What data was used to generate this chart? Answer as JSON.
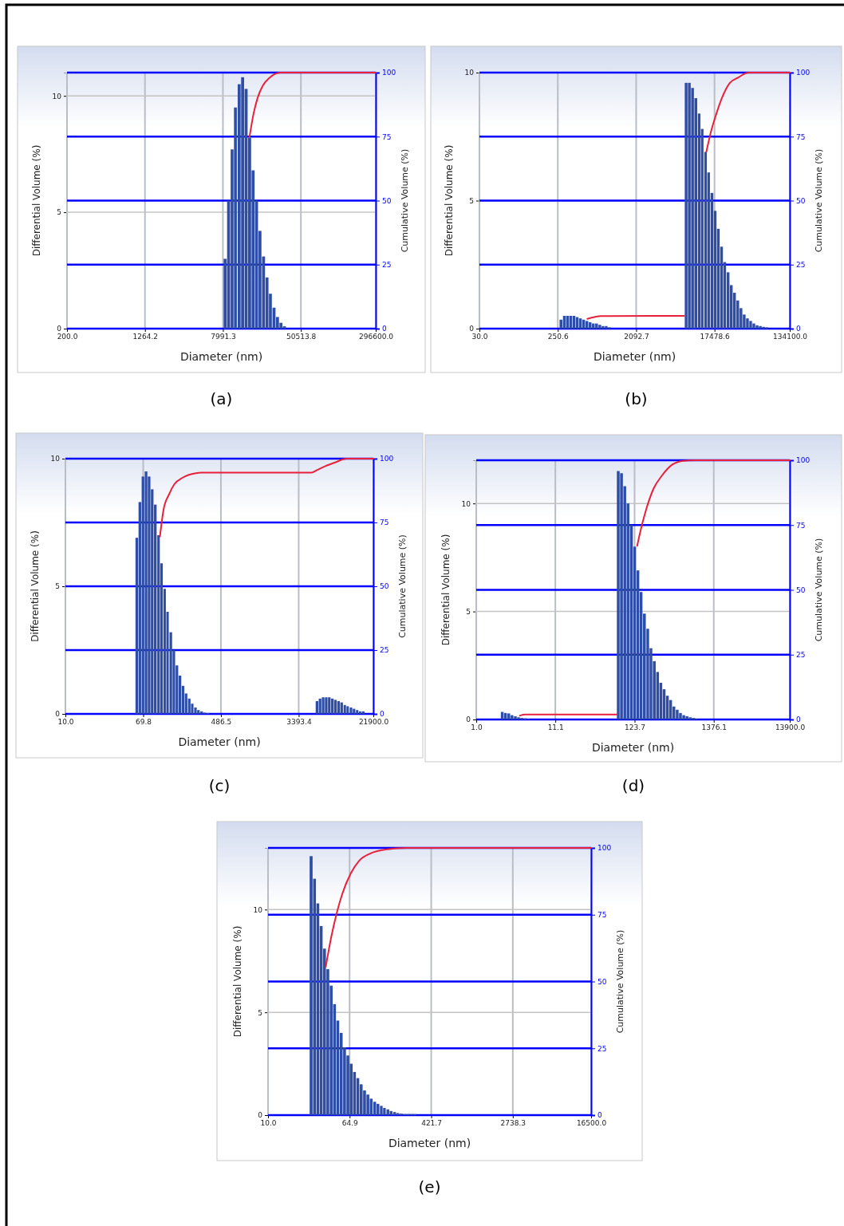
{
  "chart_data": [
    {
      "type": "bar",
      "title": "(a)",
      "xlabel": "Diameter (nm)",
      "ylabel": "Differential Volume (%)",
      "y2label": "Cumulative Volume (%)",
      "log": "x",
      "xlim": [
        200,
        296600
      ],
      "xticks": [
        {
          "value": 200,
          "label": "200.0"
        },
        {
          "value": 1264.2,
          "label": "1264.2"
        },
        {
          "value": 7991.3,
          "label": "7991.3"
        },
        {
          "value": 50513.8,
          "label": "50513.8"
        },
        {
          "value": 296600,
          "label": "296600.0"
        }
      ],
      "ylim": [
        0,
        11
      ],
      "yticks": [
        0,
        5,
        10
      ],
      "y2lim": [
        0,
        100
      ],
      "y2ticks": [
        0,
        25,
        50,
        75,
        100
      ],
      "grid": true,
      "series": [
        {
          "color": "#2e4da6",
          "x": [
            8460,
            9190,
            9980,
            10800,
            11800,
            12800,
            13900,
            15100,
            16400,
            17800,
            19300,
            21000,
            22800,
            24700,
            26900,
            29200,
            31700,
            34400
          ],
          "values": [
            3.0,
            5.5,
            7.7,
            9.5,
            10.5,
            10.8,
            10.3,
            8.2,
            6.8,
            5.5,
            4.2,
            3.1,
            2.2,
            1.5,
            0.9,
            0.5,
            0.25,
            0.1
          ]
        },
        {
          "type": "line",
          "axis": "y2",
          "color": "#e8203c",
          "x": [
            15000,
            16500,
            18100,
            20600,
            24100,
            31100,
            296600
          ],
          "values": [
            75,
            84,
            90,
            95,
            98,
            100,
            100
          ]
        }
      ]
    },
    {
      "type": "bar",
      "title": "(b)",
      "xlabel": "Diameter (nm)",
      "ylabel": "Differential Volume (%)",
      "y2label": "Cumulative Volume (%)",
      "log": "x",
      "xlim": [
        30,
        134100
      ],
      "xticks": [
        {
          "value": 30,
          "label": "30.0"
        },
        {
          "value": 250.6,
          "label": "250.6"
        },
        {
          "value": 2092.7,
          "label": "2092.7"
        },
        {
          "value": 17478.6,
          "label": "17478.6"
        },
        {
          "value": 134100,
          "label": "134100.0"
        }
      ],
      "ylim": [
        0,
        10
      ],
      "yticks": [
        0,
        5,
        10
      ],
      "y2lim": [
        0,
        100
      ],
      "y2ticks": [
        0,
        25,
        50,
        75,
        100
      ],
      "grid": true,
      "series": [
        {
          "color": "#2e4da6",
          "x": [
            275,
            301,
            328,
            358,
            391,
            426,
            465,
            508,
            554,
            605,
            660,
            720,
            786,
            857,
            936,
            1020,
            8150,
            8890,
            9700,
            10600,
            11600,
            12600,
            13800,
            15000,
            16400,
            17900,
            19500,
            21300,
            23200,
            25400,
            27700,
            30200,
            33000,
            36000,
            39300,
            42900,
            46800,
            51000,
            55700,
            60800,
            66300,
            72400
          ],
          "values": [
            0.35,
            0.5,
            0.5,
            0.5,
            0.5,
            0.45,
            0.4,
            0.35,
            0.3,
            0.25,
            0.2,
            0.2,
            0.15,
            0.1,
            0.1,
            0.05,
            9.6,
            9.6,
            9.4,
            9.0,
            8.4,
            7.8,
            6.9,
            6.1,
            5.3,
            4.6,
            3.9,
            3.2,
            2.6,
            2.2,
            1.7,
            1.4,
            1.1,
            0.8,
            0.55,
            0.4,
            0.3,
            0.2,
            0.13,
            0.1,
            0.07,
            0.05
          ]
        },
        {
          "type": "line",
          "axis": "y2",
          "color": "#e8203c",
          "x": [
            558,
            804,
            7690,
            10300,
            14000,
            15900,
            18400,
            21300,
            26500,
            33000,
            44100,
            54900,
            134100
          ],
          "values": [
            3.8,
            4.9,
            5.0,
            null,
            69,
            77,
            84,
            90,
            96,
            98,
            100,
            100,
            100
          ]
        }
      ]
    },
    {
      "type": "bar",
      "title": "(c)",
      "xlabel": "Diameter (nm)",
      "ylabel": "Differential Volume (%)",
      "y2label": "Cumulative Volume (%)",
      "log": "x",
      "xlim": [
        10,
        21900
      ],
      "xticks": [
        {
          "value": 10,
          "label": "10.0"
        },
        {
          "value": 69.8,
          "label": "69.8"
        },
        {
          "value": 486.5,
          "label": "486.5"
        },
        {
          "value": 3393.4,
          "label": "3393.4"
        },
        {
          "value": 21900,
          "label": "21900.0"
        }
      ],
      "ylim": [
        0,
        10
      ],
      "yticks": [
        0,
        5,
        10
      ],
      "y2lim": [
        0,
        100
      ],
      "y2ticks": [
        0,
        25,
        50,
        75,
        100
      ],
      "grid": true,
      "series": [
        {
          "color": "#2e4da6",
          "x": [
            59.8,
            64.6,
            69.8,
            75.4,
            81.4,
            87.9,
            95.0,
            103,
            111,
            120,
            129,
            140,
            151,
            163,
            176,
            190,
            205,
            222,
            239,
            259,
            279,
            302,
            326,
            352,
            5390,
            5820,
            6290,
            6790,
            7330,
            7920,
            8550,
            9240,
            9980,
            10800,
            11600,
            12600,
            13600,
            14700,
            15800,
            17100
          ],
          "values": [
            6.9,
            8.3,
            9.3,
            9.5,
            9.3,
            8.8,
            8.2,
            7.0,
            5.9,
            4.9,
            4.0,
            3.2,
            2.5,
            1.9,
            1.5,
            1.1,
            0.8,
            0.6,
            0.4,
            0.25,
            0.15,
            0.1,
            0.05,
            0.03,
            0.5,
            0.6,
            0.65,
            0.65,
            0.65,
            0.6,
            0.55,
            0.5,
            0.45,
            0.35,
            0.3,
            0.25,
            0.2,
            0.15,
            0.1,
            0.1
          ]
        },
        {
          "type": "line",
          "axis": "y2",
          "color": "#e8203c",
          "x": [
            106,
            116,
            133,
            152,
            186,
            260,
            297,
            4680,
            5350,
            6550,
            8560,
            11180,
            21900
          ],
          "values": [
            69.5,
            80,
            86,
            90,
            92.5,
            94.3,
            94.5,
            94.5,
            95.5,
            97,
            98.6,
            100,
            100
          ]
        }
      ]
    },
    {
      "type": "bar",
      "title": "(d)",
      "xlabel": "Diameter (nm)",
      "ylabel": "Differential Volume (%)",
      "y2label": "Cumulative Volume (%)",
      "log": "x",
      "xlim": [
        1,
        13900
      ],
      "xticks": [
        {
          "value": 1,
          "label": "1.0"
        },
        {
          "value": 11.1,
          "label": "11.1"
        },
        {
          "value": 123.7,
          "label": "123.7"
        },
        {
          "value": 1376.1,
          "label": "1376.1"
        },
        {
          "value": 13900,
          "label": "13900.0"
        }
      ],
      "ylim": [
        0,
        12
      ],
      "yticks": [
        0,
        5,
        10
      ],
      "y2lim": [
        0,
        100
      ],
      "y2ticks": [
        0,
        25,
        50,
        75,
        100
      ],
      "grid": true,
      "series": [
        {
          "color": "#2e4da6",
          "x": [
            2.22,
            2.45,
            2.71,
            2.99,
            3.31,
            3.65,
            4.04,
            4.46,
            4.92,
            75.8,
            83.7,
            92.5,
            102,
            113,
            125,
            138,
            152,
            168,
            186,
            205,
            227,
            251,
            277,
            306,
            338,
            373,
            412,
            456,
            503,
            556,
            614,
            679,
            750,
            829
          ],
          "values": [
            0.35,
            0.3,
            0.28,
            0.2,
            0.15,
            0.1,
            0.07,
            0.05,
            0.03,
            11.5,
            11.4,
            10.8,
            10.0,
            9.0,
            8.0,
            6.9,
            5.9,
            4.9,
            4.2,
            3.3,
            2.7,
            2.2,
            1.7,
            1.4,
            1.1,
            0.9,
            0.6,
            0.45,
            0.3,
            0.2,
            0.15,
            0.1,
            0.07,
            0.04
          ]
        },
        {
          "type": "line",
          "axis": "y2",
          "color": "#e8203c",
          "x": [
            3.77,
            4.46,
            71.9,
            104,
            134,
            146,
            172,
            220,
            283,
            394,
            550,
            766,
            13900
          ],
          "values": [
            1.5,
            1.9,
            1.9,
            null,
            67,
            72,
            80,
            89,
            94,
            98.4,
            99.8,
            100,
            100
          ]
        }
      ]
    },
    {
      "type": "bar",
      "title": "(e)",
      "xlabel": "Diameter (nm)",
      "ylabel": "Differential Volume (%)",
      "y2label": "Cumulative Volume (%)",
      "log": "x",
      "xlim": [
        10,
        16500
      ],
      "xticks": [
        {
          "value": 10,
          "label": "10.0"
        },
        {
          "value": 64.9,
          "label": "64.9"
        },
        {
          "value": 421.7,
          "label": "421.7"
        },
        {
          "value": 2738.3,
          "label": "2738.3"
        },
        {
          "value": 16500,
          "label": "16500.0"
        }
      ],
      "ylim": [
        0,
        13
      ],
      "yticks": [
        0,
        5,
        10
      ],
      "y2lim": [
        0,
        100
      ],
      "y2ticks": [
        0,
        25,
        50,
        75,
        100
      ],
      "grid": true,
      "series": [
        {
          "color": "#2e4da6",
          "x": [
            27.0,
            29.2,
            31.5,
            34.0,
            36.7,
            39.6,
            42.8,
            46.2,
            49.8,
            53.8,
            58.1,
            62.7,
            67.7,
            73.0,
            78.8,
            85.1,
            91.9,
            99.2,
            107,
            116,
            125,
            135,
            145,
            157,
            169,
            183,
            197,
            213,
            230,
            248,
            268,
            289
          ],
          "values": [
            12.6,
            11.5,
            10.3,
            9.2,
            8.1,
            7.1,
            6.3,
            5.4,
            4.6,
            4.0,
            3.3,
            2.9,
            2.5,
            2.1,
            1.8,
            1.5,
            1.2,
            1.0,
            0.8,
            0.65,
            0.55,
            0.45,
            0.35,
            0.28,
            0.2,
            0.15,
            0.1,
            0.07,
            0.05,
            0.05,
            0.05,
            0.05
          ]
        },
        {
          "type": "line",
          "axis": "y2",
          "color": "#e8203c",
          "x": [
            37.6,
            42.8,
            48.6,
            55.1,
            66.8,
            80.8,
            104,
            153,
            254,
            16500
          ],
          "values": [
            55.6,
            67,
            76,
            83,
            90.5,
            95.2,
            97.9,
            99.5,
            100,
            100
          ]
        }
      ]
    }
  ]
}
